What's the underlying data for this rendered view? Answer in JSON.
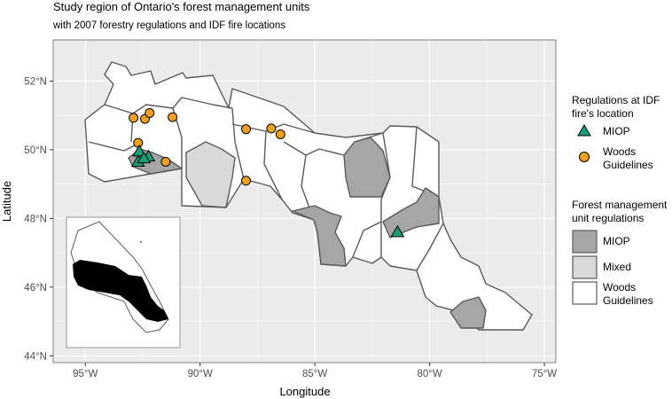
{
  "title": "Study region of Ontario's forest management units",
  "subtitle": "with 2007 forestry regulations and IDF fire locations",
  "colors": {
    "panel_bg": "#ebebeb",
    "grid": "#ffffff",
    "miop": "#a6a6a6",
    "mixed": "#d9d9d9",
    "woods": "#ffffff",
    "border": "#595959",
    "triangle": "#1b9e77",
    "point": "#f0a020"
  },
  "chart_data": {
    "type": "map",
    "xlabel": "Longitude",
    "ylabel": "Latitude",
    "xlim": [
      -96.4,
      -74.5
    ],
    "ylim": [
      43.8,
      53.2
    ],
    "x_ticks": [
      {
        "value": -95,
        "label": "95°W"
      },
      {
        "value": -90,
        "label": "90°W"
      },
      {
        "value": -85,
        "label": "85°W"
      },
      {
        "value": -80,
        "label": "80°W"
      },
      {
        "value": -75,
        "label": "75°W"
      }
    ],
    "y_ticks": [
      {
        "value": 44,
        "label": "44°N"
      },
      {
        "value": 46,
        "label": "46°N"
      },
      {
        "value": 48,
        "label": "48°N"
      },
      {
        "value": 50,
        "label": "50°N"
      },
      {
        "value": 52,
        "label": "52°N"
      }
    ],
    "grid": true,
    "fire_locations": [
      {
        "lon": -92.9,
        "lat": 50.93,
        "regulation": "Woods Guidelines"
      },
      {
        "lon": -92.4,
        "lat": 50.9,
        "regulation": "Woods Guidelines"
      },
      {
        "lon": -92.2,
        "lat": 51.07,
        "regulation": "Woods Guidelines"
      },
      {
        "lon": -91.2,
        "lat": 50.95,
        "regulation": "Woods Guidelines"
      },
      {
        "lon": -92.7,
        "lat": 50.2,
        "regulation": "Woods Guidelines"
      },
      {
        "lon": -91.5,
        "lat": 49.65,
        "regulation": "Woods Guidelines"
      },
      {
        "lon": -88.0,
        "lat": 50.6,
        "regulation": "Woods Guidelines"
      },
      {
        "lon": -86.9,
        "lat": 50.62,
        "regulation": "Woods Guidelines"
      },
      {
        "lon": -86.5,
        "lat": 50.45,
        "regulation": "Woods Guidelines"
      },
      {
        "lon": -88.0,
        "lat": 49.1,
        "regulation": "Woods Guidelines"
      },
      {
        "lon": -92.65,
        "lat": 49.95,
        "regulation": "MIOP"
      },
      {
        "lon": -92.25,
        "lat": 49.8,
        "regulation": "MIOP"
      },
      {
        "lon": -92.7,
        "lat": 49.65,
        "regulation": "MIOP"
      },
      {
        "lon": -92.45,
        "lat": 49.75,
        "regulation": "MIOP"
      },
      {
        "lon": -81.4,
        "lat": 47.6,
        "regulation": "MIOP"
      }
    ],
    "regulation_legend": {
      "title": "Regulations at IDF fire's location",
      "items": [
        {
          "label": "MIOP",
          "shape": "triangle"
        },
        {
          "label": "Woods Guidelines",
          "shape": "circle"
        }
      ]
    },
    "unit_legend": {
      "title": "Forest management unit regulations",
      "items": [
        {
          "label": "MIOP",
          "fill": "#a6a6a6"
        },
        {
          "label": "Mixed",
          "fill": "#d9d9d9"
        },
        {
          "label": "Woods Guidelines",
          "fill": "#ffffff"
        }
      ]
    }
  },
  "legend_text": {
    "reg_title_1": "Regulations at IDF",
    "reg_title_2": "fire's location",
    "reg_item_miop": "MIOP",
    "reg_item_woods_1": "Woods",
    "reg_item_woods_2": "Guidelines",
    "unit_title_1": "Forest management",
    "unit_title_2": "unit regulations",
    "unit_item_miop": "MIOP",
    "unit_item_mixed": "Mixed",
    "unit_item_woods_1": "Woods",
    "unit_item_woods_2": "Guidelines"
  }
}
